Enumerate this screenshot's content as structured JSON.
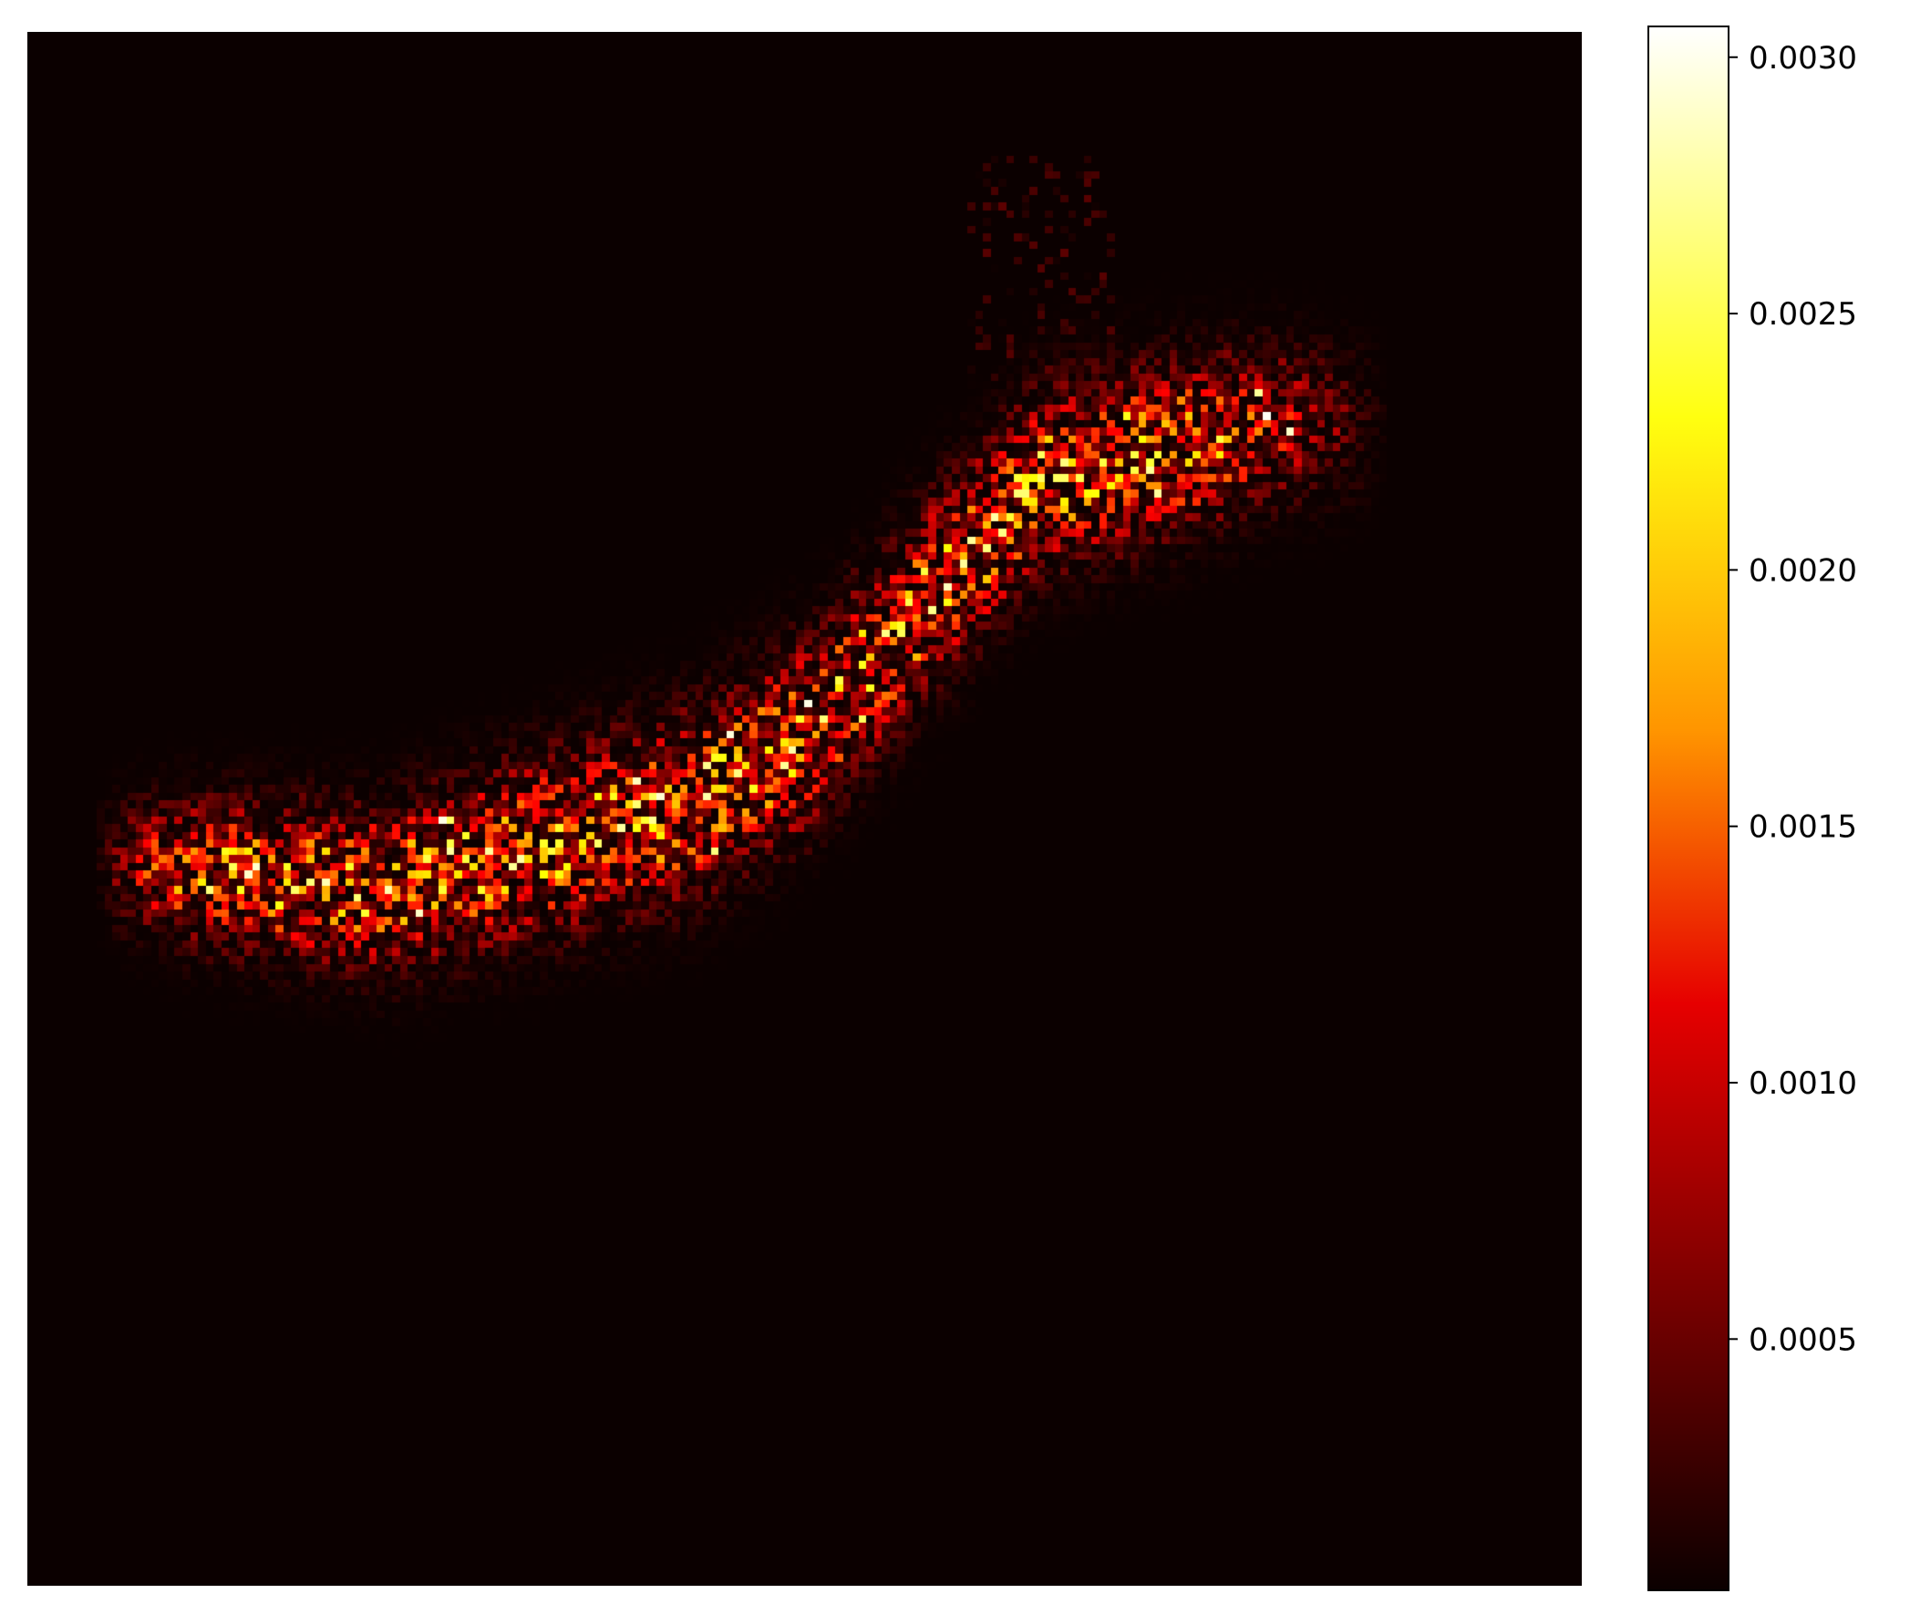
{
  "chart_data": {
    "type": "heatmap",
    "title": "",
    "xlabel": "",
    "ylabel": "",
    "axes_visible": false,
    "colormap": "hot",
    "grid_size": [
      200,
      200
    ],
    "value_range": [
      1e-05,
      0.00306
    ],
    "colors": {
      "low": "#0b0000",
      "mid_low": "#e60000",
      "mid": "#ff9500",
      "mid_high": "#ffff10",
      "high": "#ffffff"
    },
    "colorbar": {
      "position": "right",
      "ticks": [
        {
          "value": 0.0005,
          "label": "0.0005"
        },
        {
          "value": 0.001,
          "label": "0.0010"
        },
        {
          "value": 0.0015,
          "label": "0.0015"
        },
        {
          "value": 0.002,
          "label": "0.0020"
        },
        {
          "value": 0.0025,
          "label": "0.0025"
        },
        {
          "value": 0.003,
          "label": "0.0030"
        }
      ]
    },
    "band": {
      "description_points": [
        [
          15,
          107
        ],
        [
          45,
          110
        ],
        [
          85,
          99
        ],
        [
          100,
          90
        ],
        [
          115,
          73
        ],
        [
          130,
          57
        ],
        [
          148,
          53
        ],
        [
          160,
          50
        ]
      ],
      "peak_value": 0.00305
    }
  }
}
